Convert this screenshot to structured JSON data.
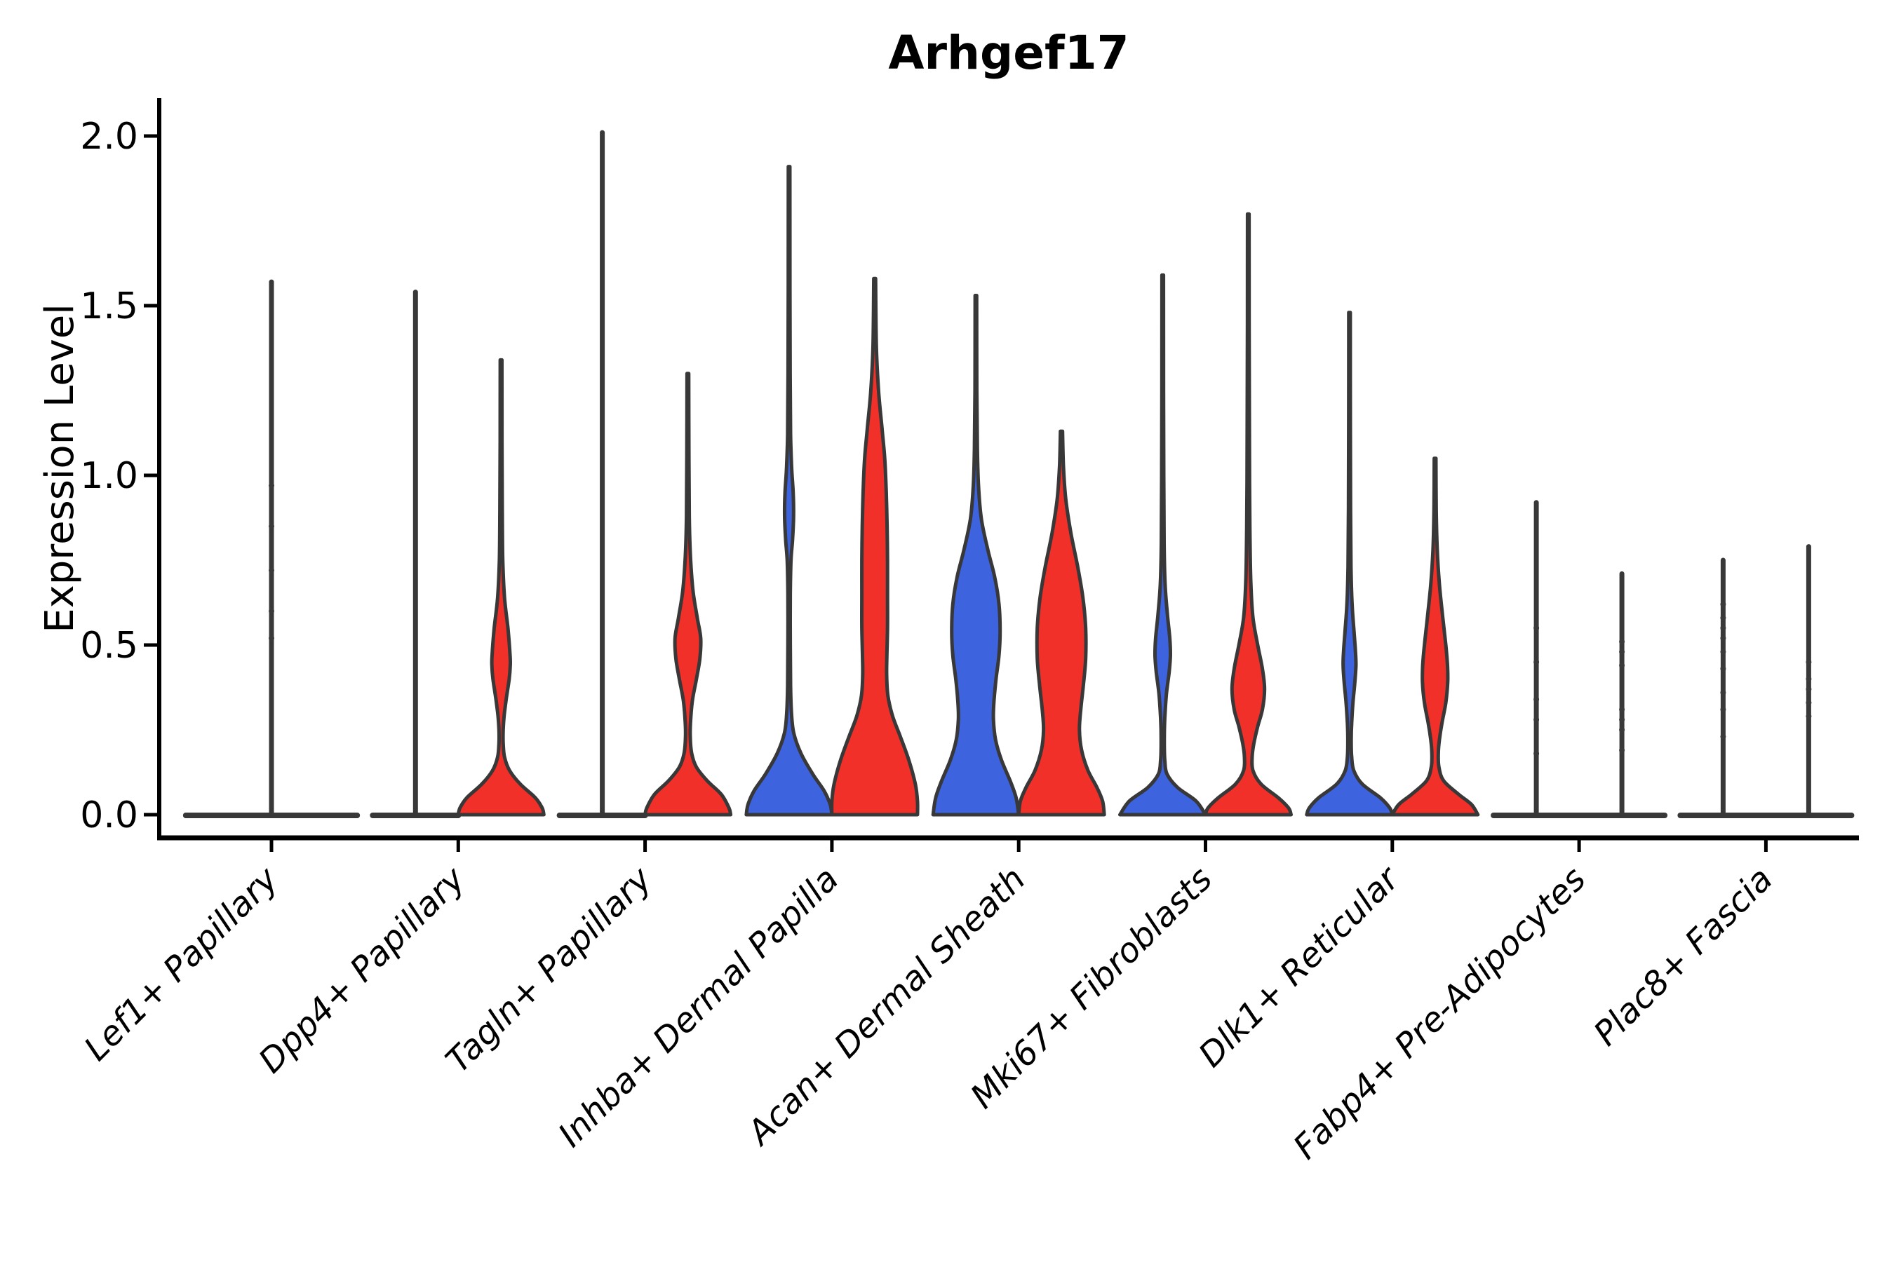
{
  "figure": {
    "title": "Arhgef17",
    "y_axis_label": "Expression Level"
  },
  "chart_data": {
    "type": "violin",
    "title": "Arhgef17",
    "xlabel": "",
    "ylabel": "Expression Level",
    "ylim": [
      -0.07,
      2.11
    ],
    "yticks": [
      0.0,
      0.5,
      1.0,
      1.5,
      2.0
    ],
    "grid": false,
    "legend_position": "none",
    "split": true,
    "groups": [
      {
        "id": "blue",
        "color": "#3E63DF"
      },
      {
        "id": "red",
        "color": "#F2302A"
      }
    ],
    "outline_color": "#383838",
    "categories": [
      "Lef1+ Papillary",
      "Dpp4+ Papillary",
      "Tagln+ Papillary",
      "Inhba+ Dermal Papilla",
      "Acan+ Dermal Sheath",
      "Mki67+ Fibroblasts",
      "Dlk1+ Reticular",
      "Fabp4+ Pre-Adipocytes",
      "Plac8+ Fascia"
    ],
    "violins": [
      {
        "category": "Lef1+ Papillary",
        "group": "single",
        "flat": true,
        "max": 1.57,
        "span": "full",
        "dots": [
          0.97,
          0.85,
          0.72,
          0.6,
          0.52
        ]
      },
      {
        "category": "Dpp4+ Papillary",
        "group": "blue",
        "flat": true,
        "max": 1.54
      },
      {
        "category": "Dpp4+ Papillary",
        "group": "red",
        "flat": false,
        "max": 1.34,
        "profile": [
          [
            1.34,
            0.02
          ],
          [
            1.1,
            0.022
          ],
          [
            0.9,
            0.028
          ],
          [
            0.75,
            0.04
          ],
          [
            0.64,
            0.08
          ],
          [
            0.55,
            0.16
          ],
          [
            0.47,
            0.21
          ],
          [
            0.44,
            0.215
          ],
          [
            0.4,
            0.19
          ],
          [
            0.34,
            0.12
          ],
          [
            0.29,
            0.07
          ],
          [
            0.25,
            0.05
          ],
          [
            0.21,
            0.05
          ],
          [
            0.17,
            0.08
          ],
          [
            0.13,
            0.2
          ],
          [
            0.09,
            0.45
          ],
          [
            0.05,
            0.8
          ],
          [
            0.02,
            0.96
          ],
          [
            0,
            1.0
          ]
        ]
      },
      {
        "category": "Tagln+ Papillary",
        "group": "blue",
        "flat": true,
        "max": 2.01
      },
      {
        "category": "Tagln+ Papillary",
        "group": "red",
        "flat": false,
        "max": 1.3,
        "profile": [
          [
            1.3,
            0.02
          ],
          [
            1.05,
            0.024
          ],
          [
            0.88,
            0.032
          ],
          [
            0.76,
            0.06
          ],
          [
            0.66,
            0.12
          ],
          [
            0.58,
            0.22
          ],
          [
            0.52,
            0.3
          ],
          [
            0.46,
            0.28
          ],
          [
            0.4,
            0.2
          ],
          [
            0.34,
            0.11
          ],
          [
            0.28,
            0.065
          ],
          [
            0.23,
            0.055
          ],
          [
            0.18,
            0.09
          ],
          [
            0.14,
            0.2
          ],
          [
            0.1,
            0.45
          ],
          [
            0.06,
            0.78
          ],
          [
            0.02,
            0.96
          ],
          [
            0,
            1.0
          ]
        ]
      },
      {
        "category": "Inhba+ Dermal Papilla",
        "group": "blue",
        "flat": false,
        "max": 1.91,
        "profile": [
          [
            1.91,
            0.018
          ],
          [
            1.55,
            0.02
          ],
          [
            1.3,
            0.024
          ],
          [
            1.12,
            0.035
          ],
          [
            1.02,
            0.06
          ],
          [
            0.95,
            0.095
          ],
          [
            0.88,
            0.105
          ],
          [
            0.81,
            0.08
          ],
          [
            0.75,
            0.045
          ],
          [
            0.65,
            0.028
          ],
          [
            0.5,
            0.028
          ],
          [
            0.38,
            0.035
          ],
          [
            0.3,
            0.055
          ],
          [
            0.24,
            0.11
          ],
          [
            0.18,
            0.28
          ],
          [
            0.12,
            0.55
          ],
          [
            0.07,
            0.82
          ],
          [
            0.03,
            0.96
          ],
          [
            0,
            1.0
          ]
        ]
      },
      {
        "category": "Inhba+ Dermal Papilla",
        "group": "red",
        "flat": false,
        "max": 1.58,
        "profile": [
          [
            1.58,
            0.022
          ],
          [
            1.38,
            0.04
          ],
          [
            1.25,
            0.09
          ],
          [
            1.14,
            0.17
          ],
          [
            1.05,
            0.235
          ],
          [
            0.95,
            0.27
          ],
          [
            0.85,
            0.29
          ],
          [
            0.75,
            0.3
          ],
          [
            0.65,
            0.3
          ],
          [
            0.55,
            0.3
          ],
          [
            0.47,
            0.285
          ],
          [
            0.41,
            0.28
          ],
          [
            0.35,
            0.31
          ],
          [
            0.29,
            0.42
          ],
          [
            0.23,
            0.6
          ],
          [
            0.16,
            0.8
          ],
          [
            0.09,
            0.95
          ],
          [
            0.04,
            1.0
          ],
          [
            0,
            1.0
          ]
        ]
      },
      {
        "category": "Acan+ Dermal Sheath",
        "group": "blue",
        "flat": false,
        "max": 1.53,
        "profile": [
          [
            1.53,
            0.018
          ],
          [
            1.25,
            0.022
          ],
          [
            1.08,
            0.035
          ],
          [
            0.97,
            0.06
          ],
          [
            0.87,
            0.13
          ],
          [
            0.78,
            0.28
          ],
          [
            0.7,
            0.44
          ],
          [
            0.62,
            0.54
          ],
          [
            0.54,
            0.565
          ],
          [
            0.47,
            0.54
          ],
          [
            0.4,
            0.47
          ],
          [
            0.33,
            0.42
          ],
          [
            0.28,
            0.41
          ],
          [
            0.22,
            0.46
          ],
          [
            0.16,
            0.6
          ],
          [
            0.1,
            0.8
          ],
          [
            0.05,
            0.94
          ],
          [
            0,
            1.0
          ]
        ]
      },
      {
        "category": "Acan+ Dermal Sheath",
        "group": "red",
        "flat": false,
        "max": 1.13,
        "profile": [
          [
            1.13,
            0.025
          ],
          [
            1.03,
            0.045
          ],
          [
            0.93,
            0.1
          ],
          [
            0.83,
            0.22
          ],
          [
            0.73,
            0.38
          ],
          [
            0.64,
            0.5
          ],
          [
            0.55,
            0.565
          ],
          [
            0.46,
            0.565
          ],
          [
            0.38,
            0.51
          ],
          [
            0.31,
            0.45
          ],
          [
            0.25,
            0.42
          ],
          [
            0.19,
            0.47
          ],
          [
            0.13,
            0.62
          ],
          [
            0.08,
            0.83
          ],
          [
            0.04,
            0.96
          ],
          [
            0,
            1.0
          ]
        ]
      },
      {
        "category": "Mki67+ Fibroblasts",
        "group": "blue",
        "flat": false,
        "max": 1.59,
        "profile": [
          [
            1.59,
            0.018
          ],
          [
            1.25,
            0.02
          ],
          [
            1.0,
            0.024
          ],
          [
            0.8,
            0.032
          ],
          [
            0.68,
            0.055
          ],
          [
            0.59,
            0.11
          ],
          [
            0.52,
            0.165
          ],
          [
            0.47,
            0.18
          ],
          [
            0.42,
            0.15
          ],
          [
            0.36,
            0.09
          ],
          [
            0.3,
            0.055
          ],
          [
            0.25,
            0.04
          ],
          [
            0.2,
            0.038
          ],
          [
            0.16,
            0.05
          ],
          [
            0.12,
            0.1
          ],
          [
            0.08,
            0.35
          ],
          [
            0.04,
            0.78
          ],
          [
            0,
            1.0
          ]
        ]
      },
      {
        "category": "Mki67+ Fibroblasts",
        "group": "red",
        "flat": false,
        "max": 1.77,
        "profile": [
          [
            1.77,
            0.018
          ],
          [
            1.45,
            0.02
          ],
          [
            1.2,
            0.024
          ],
          [
            0.98,
            0.03
          ],
          [
            0.82,
            0.04
          ],
          [
            0.68,
            0.06
          ],
          [
            0.58,
            0.11
          ],
          [
            0.5,
            0.22
          ],
          [
            0.43,
            0.33
          ],
          [
            0.37,
            0.38
          ],
          [
            0.31,
            0.33
          ],
          [
            0.26,
            0.22
          ],
          [
            0.21,
            0.13
          ],
          [
            0.17,
            0.09
          ],
          [
            0.13,
            0.11
          ],
          [
            0.09,
            0.3
          ],
          [
            0.05,
            0.7
          ],
          [
            0.02,
            0.94
          ],
          [
            0,
            1.0
          ]
        ]
      },
      {
        "category": "Dlk1+ Reticular",
        "group": "blue",
        "flat": false,
        "max": 1.48,
        "profile": [
          [
            1.48,
            0.018
          ],
          [
            1.15,
            0.02
          ],
          [
            0.9,
            0.025
          ],
          [
            0.73,
            0.035
          ],
          [
            0.62,
            0.06
          ],
          [
            0.54,
            0.105
          ],
          [
            0.48,
            0.14
          ],
          [
            0.44,
            0.15
          ],
          [
            0.39,
            0.125
          ],
          [
            0.33,
            0.08
          ],
          [
            0.27,
            0.05
          ],
          [
            0.22,
            0.04
          ],
          [
            0.17,
            0.05
          ],
          [
            0.13,
            0.1
          ],
          [
            0.09,
            0.3
          ],
          [
            0.05,
            0.72
          ],
          [
            0.02,
            0.94
          ],
          [
            0,
            1.0
          ]
        ]
      },
      {
        "category": "Dlk1+ Reticular",
        "group": "red",
        "flat": false,
        "max": 1.05,
        "profile": [
          [
            1.05,
            0.02
          ],
          [
            0.9,
            0.026
          ],
          [
            0.78,
            0.05
          ],
          [
            0.68,
            0.1
          ],
          [
            0.58,
            0.18
          ],
          [
            0.5,
            0.25
          ],
          [
            0.44,
            0.29
          ],
          [
            0.39,
            0.295
          ],
          [
            0.33,
            0.25
          ],
          [
            0.27,
            0.16
          ],
          [
            0.22,
            0.1
          ],
          [
            0.18,
            0.075
          ],
          [
            0.14,
            0.09
          ],
          [
            0.1,
            0.2
          ],
          [
            0.06,
            0.55
          ],
          [
            0.03,
            0.85
          ],
          [
            0,
            1.0
          ]
        ]
      },
      {
        "category": "Fabp4+ Pre-Adipocytes",
        "group": "blue",
        "flat": true,
        "max": 0.92,
        "dots": [
          0.55,
          0.45,
          0.34,
          0.28,
          0.18
        ]
      },
      {
        "category": "Fabp4+ Pre-Adipocytes",
        "group": "red",
        "flat": true,
        "max": 0.71,
        "dots": [
          0.51,
          0.48,
          0.44,
          0.31,
          0.28,
          0.25,
          0.19
        ]
      },
      {
        "category": "Plac8+ Fascia",
        "group": "blue",
        "flat": true,
        "max": 0.75,
        "dots": [
          0.62,
          0.58,
          0.55,
          0.52,
          0.48,
          0.43,
          0.36,
          0.31,
          0.23
        ]
      },
      {
        "category": "Plac8+ Fascia",
        "group": "red",
        "flat": true,
        "max": 0.79,
        "dots": [
          0.45,
          0.4,
          0.37,
          0.33,
          0.29
        ]
      }
    ]
  }
}
